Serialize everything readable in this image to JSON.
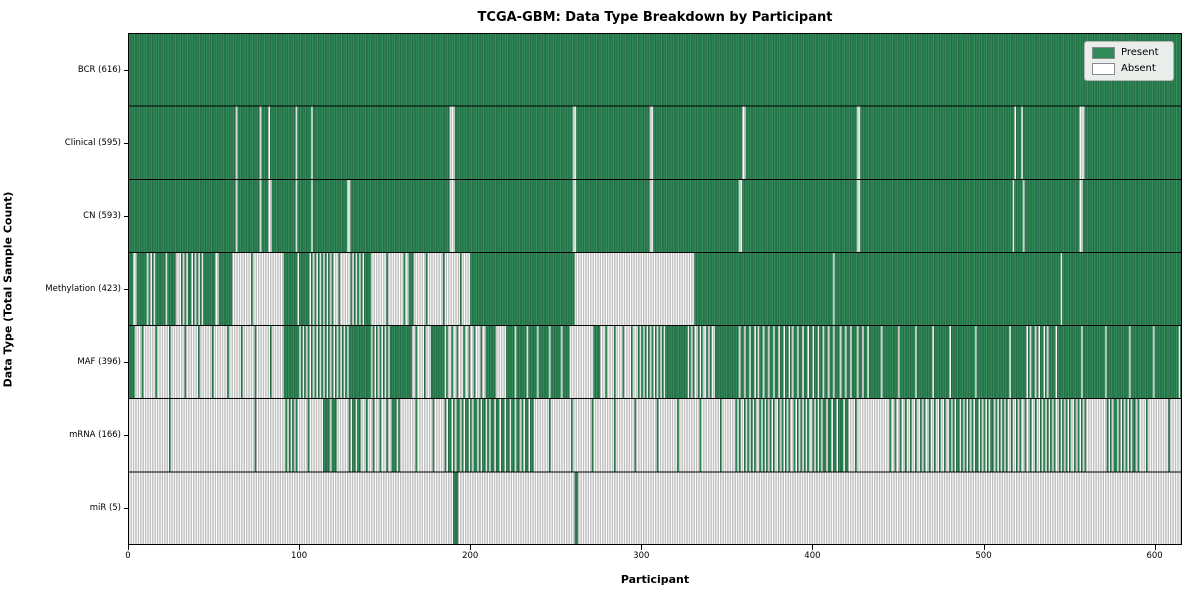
{
  "title": "TCGA-GBM: Data Type Breakdown by Participant",
  "legend": {
    "present_label": "Present",
    "absent_label": "Absent"
  },
  "colors": {
    "present_fill": "#2e8b57",
    "present_edge": "#1b5e3b",
    "absent_fill": "#ffffff",
    "absent_edge": "#9e9e9e",
    "separator": "#000000",
    "legend_bg": "#eaeeea",
    "legend_border": "#b5b5b5",
    "legend_swatch_edge": "#8a8a8a"
  },
  "chart_data": {
    "type": "heatmap",
    "title": "TCGA-GBM: Data Type Breakdown by Participant",
    "xlabel": "Participant",
    "ylabel": "Data Type (Total Sample Count)",
    "x_range": [
      0,
      616
    ],
    "x_ticks": [
      0,
      100,
      200,
      300,
      400,
      500,
      600
    ],
    "n_participants": 616,
    "grid": false,
    "legend_position": "upper right",
    "legend_entries": [
      {
        "label": "Present",
        "color": "#2e8b57"
      },
      {
        "label": "Absent",
        "color": "#ffffff"
      }
    ],
    "cell_states": [
      "present",
      "absent"
    ],
    "segment_format": "segments are [start_participant, end_participant, fraction_present]; fraction 1 = solid present (green), 0 = solid absent (white), intermediate = striped mix at that density",
    "rows": [
      {
        "label": "BCR (616)",
        "name": "BCR",
        "total_present": 616,
        "segments": [
          [
            0,
            616,
            1
          ]
        ]
      },
      {
        "label": "Clinical (595)",
        "name": "Clinical",
        "total_present": 595,
        "segments": [
          [
            0,
            63,
            1
          ],
          [
            63,
            64,
            0
          ],
          [
            64,
            77,
            1
          ],
          [
            77,
            78,
            0
          ],
          [
            78,
            82,
            1
          ],
          [
            82,
            83,
            0
          ],
          [
            83,
            98,
            1
          ],
          [
            98,
            99,
            0
          ],
          [
            99,
            107,
            1
          ],
          [
            107,
            108,
            0
          ],
          [
            108,
            188,
            1
          ],
          [
            188,
            191,
            0
          ],
          [
            191,
            260,
            1
          ],
          [
            260,
            262,
            0
          ],
          [
            262,
            305,
            1
          ],
          [
            305,
            307,
            0
          ],
          [
            307,
            359,
            1
          ],
          [
            359,
            361,
            0
          ],
          [
            361,
            426,
            1
          ],
          [
            426,
            428,
            0
          ],
          [
            428,
            518,
            1
          ],
          [
            518,
            519,
            0
          ],
          [
            519,
            522,
            1
          ],
          [
            522,
            523,
            0
          ],
          [
            523,
            556,
            1
          ],
          [
            556,
            559,
            0
          ],
          [
            559,
            616,
            1
          ]
        ]
      },
      {
        "label": "CN (593)",
        "name": "CN",
        "total_present": 593,
        "segments": [
          [
            0,
            63,
            1
          ],
          [
            63,
            64,
            0
          ],
          [
            64,
            77,
            1
          ],
          [
            77,
            78,
            0
          ],
          [
            78,
            82,
            1
          ],
          [
            82,
            84,
            0
          ],
          [
            84,
            98,
            1
          ],
          [
            98,
            99,
            0
          ],
          [
            99,
            107,
            1
          ],
          [
            107,
            108,
            0
          ],
          [
            108,
            128,
            1
          ],
          [
            128,
            130,
            0
          ],
          [
            130,
            188,
            1
          ],
          [
            188,
            191,
            0
          ],
          [
            191,
            260,
            1
          ],
          [
            260,
            262,
            0
          ],
          [
            262,
            305,
            1
          ],
          [
            305,
            307,
            0
          ],
          [
            307,
            357,
            1
          ],
          [
            357,
            359,
            0
          ],
          [
            359,
            426,
            1
          ],
          [
            426,
            428,
            0
          ],
          [
            428,
            517,
            1
          ],
          [
            517,
            518,
            0
          ],
          [
            518,
            523,
            1
          ],
          [
            523,
            524,
            0
          ],
          [
            524,
            556,
            1
          ],
          [
            556,
            558,
            0
          ],
          [
            558,
            616,
            1
          ]
        ]
      },
      {
        "label": "Methylation (423)",
        "name": "Methylation",
        "total_present": 423,
        "segments": [
          [
            0,
            3,
            1
          ],
          [
            3,
            5,
            0
          ],
          [
            5,
            11,
            1
          ],
          [
            11,
            15,
            0.4
          ],
          [
            15,
            28,
            0.85
          ],
          [
            28,
            30,
            0
          ],
          [
            30,
            45,
            0.55
          ],
          [
            45,
            51,
            1
          ],
          [
            51,
            53,
            0
          ],
          [
            53,
            61,
            1
          ],
          [
            61,
            91,
            0.05
          ],
          [
            91,
            99,
            1
          ],
          [
            99,
            100,
            0
          ],
          [
            100,
            105,
            1
          ],
          [
            105,
            120,
            0.5
          ],
          [
            120,
            130,
            0.15
          ],
          [
            130,
            138,
            0.5
          ],
          [
            138,
            141,
            1
          ],
          [
            141,
            164,
            0.1
          ],
          [
            164,
            167,
            1
          ],
          [
            167,
            196,
            0.1
          ],
          [
            196,
            200,
            0
          ],
          [
            200,
            261,
            1
          ],
          [
            261,
            331,
            0
          ],
          [
            331,
            412,
            1
          ],
          [
            412,
            413,
            0
          ],
          [
            413,
            545,
            1
          ],
          [
            545,
            546,
            0
          ],
          [
            546,
            616,
            1
          ]
        ]
      },
      {
        "label": "MAF (396)",
        "name": "MAF",
        "total_present": 396,
        "segments": [
          [
            0,
            4,
            1
          ],
          [
            4,
            91,
            0.12
          ],
          [
            91,
            99,
            1
          ],
          [
            99,
            130,
            0.5
          ],
          [
            130,
            142,
            1
          ],
          [
            142,
            154,
            0.5
          ],
          [
            154,
            166,
            1
          ],
          [
            166,
            177,
            0.2
          ],
          [
            177,
            185,
            1
          ],
          [
            185,
            209,
            0.3
          ],
          [
            209,
            215,
            1
          ],
          [
            215,
            221,
            0
          ],
          [
            221,
            258,
            0.85
          ],
          [
            258,
            272,
            0
          ],
          [
            272,
            276,
            1
          ],
          [
            276,
            297,
            0.2
          ],
          [
            297,
            315,
            0.5
          ],
          [
            315,
            327,
            1
          ],
          [
            327,
            343,
            0.4
          ],
          [
            343,
            355,
            1
          ],
          [
            355,
            406,
            0.65
          ],
          [
            406,
            434,
            0.7
          ],
          [
            434,
            485,
            0.9
          ],
          [
            485,
            524,
            0.95
          ],
          [
            524,
            540,
            0.6
          ],
          [
            540,
            616,
            0.93
          ]
        ]
      },
      {
        "label": "mRNA (166)",
        "name": "mRNA",
        "total_present": 166,
        "segments": [
          [
            0,
            91,
            0.02
          ],
          [
            91,
            99,
            0.5
          ],
          [
            99,
            114,
            0.1
          ],
          [
            114,
            122,
            0.8
          ],
          [
            122,
            130,
            0.1
          ],
          [
            130,
            136,
            0.7
          ],
          [
            136,
            154,
            0.25
          ],
          [
            154,
            158,
            0.8
          ],
          [
            158,
            185,
            0.1
          ],
          [
            185,
            209,
            0.6
          ],
          [
            209,
            237,
            0.65
          ],
          [
            237,
            355,
            0.08
          ],
          [
            355,
            406,
            0.45
          ],
          [
            406,
            422,
            0.7
          ],
          [
            422,
            446,
            0.05
          ],
          [
            446,
            481,
            0.35
          ],
          [
            481,
            513,
            0.55
          ],
          [
            513,
            532,
            0.35
          ],
          [
            532,
            560,
            0.45
          ],
          [
            560,
            572,
            0.05
          ],
          [
            572,
            592,
            0.55
          ],
          [
            592,
            616,
            0.08
          ]
        ]
      },
      {
        "label": "miR (5)",
        "name": "miR",
        "total_present": 5,
        "segments": [
          [
            0,
            190,
            0
          ],
          [
            190,
            193,
            1
          ],
          [
            193,
            261,
            0
          ],
          [
            261,
            263,
            1
          ],
          [
            263,
            616,
            0
          ]
        ]
      }
    ]
  }
}
